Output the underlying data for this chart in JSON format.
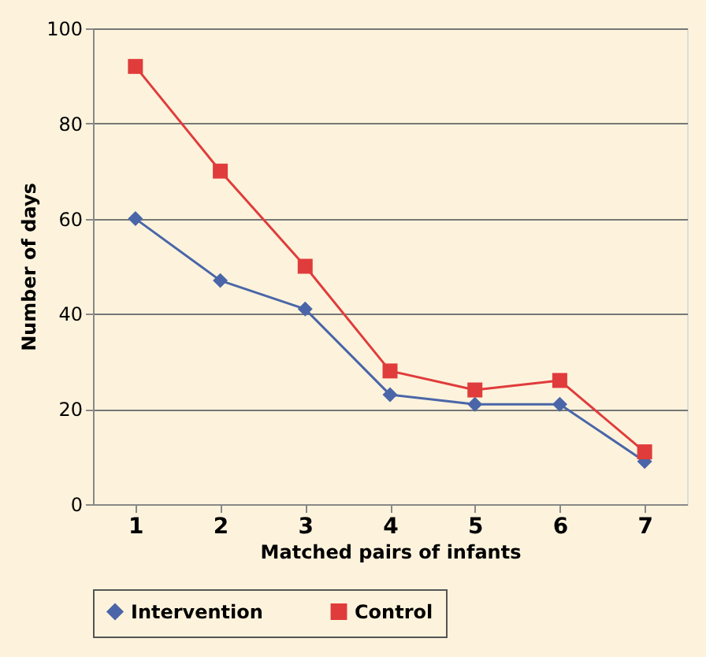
{
  "chart_data": {
    "type": "line",
    "xlabel": "Matched pairs of infants",
    "ylabel": "Number of days",
    "categories": [
      "1",
      "2",
      "3",
      "4",
      "5",
      "6",
      "7"
    ],
    "series": [
      {
        "name": "Intervention",
        "color": "#4a66a8",
        "marker": "diamond",
        "values": [
          60,
          47,
          41,
          23,
          21,
          21,
          9
        ]
      },
      {
        "name": "Control",
        "color": "#e03c3c",
        "marker": "square",
        "values": [
          92,
          70,
          50,
          28,
          24,
          26,
          11
        ]
      }
    ],
    "ylim": [
      0,
      100
    ],
    "yticks": [
      0,
      20,
      40,
      60,
      80,
      100
    ],
    "grid": "y",
    "legend": "bottom",
    "line_style": "solid"
  }
}
